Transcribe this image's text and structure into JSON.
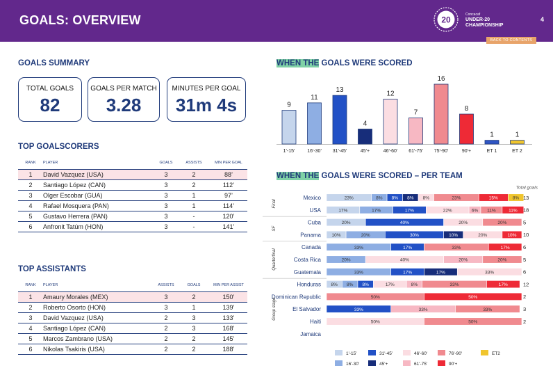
{
  "header": {
    "title": "GOALS: OVERVIEW",
    "page_number": "4",
    "back_label": "BACK TO CONTENTS",
    "logo": {
      "badge": "20",
      "line1": "Concacaf",
      "line2": "UNDER-20",
      "line3": "CHAMPIONSHIP"
    }
  },
  "summary": {
    "title": "GOALS SUMMARY",
    "stats": [
      {
        "label": "TOTAL GOALS",
        "value": "82"
      },
      {
        "label": "GOALS PER MATCH",
        "value": "3.28"
      },
      {
        "label": "MINUTES PER GOAL",
        "value": "31m 4s"
      }
    ]
  },
  "scorers": {
    "title": "TOP GOALSCORERS",
    "headers": [
      "RANK",
      "PLAYER",
      "GOALS",
      "ASSISTS",
      "MIN PER GOAL"
    ],
    "rows": [
      [
        "1",
        "David Vazquez (USA)",
        "3",
        "2",
        "88’"
      ],
      [
        "2",
        "Santiago López (CAN)",
        "3",
        "2",
        "112’"
      ],
      [
        "3",
        "Olger Escobar (GUA)",
        "3",
        "1",
        "97’"
      ],
      [
        "4",
        "Rafael Mosquera (PAN)",
        "3",
        "1",
        "114’"
      ],
      [
        "5",
        "Gustavo Herrera (PAN)",
        "3",
        "-",
        "120’"
      ],
      [
        "6",
        "Anfronit Tatúm (HON)",
        "3",
        "-",
        "141’"
      ]
    ]
  },
  "assists": {
    "title": "TOP ASSISTANTS",
    "headers": [
      "RANK",
      "PLAYER",
      "ASSISTS",
      "GOALS",
      "MIN PER ASSIST"
    ],
    "rows": [
      [
        "1",
        "Amaury Morales (MEX)",
        "3",
        "2",
        "150’"
      ],
      [
        "2",
        "Roberto Osorto (HON)",
        "3",
        "1",
        "139’"
      ],
      [
        "3",
        "David Vazquez (USA)",
        "2",
        "3",
        "133’"
      ],
      [
        "4",
        "Santiago López (CAN)",
        "2",
        "3",
        "168’"
      ],
      [
        "5",
        "Marcos Zambrano (USA)",
        "2",
        "2",
        "145’"
      ],
      [
        "6",
        "Nikolas Tsakiris (USA)",
        "2",
        "2",
        "188’"
      ]
    ]
  },
  "when_title": {
    "highlight": "WHEN THE",
    "rest": " GOALS WERE SCORED"
  },
  "per_team_title": {
    "highlight": "WHEN THE",
    "rest": " GOALS WERE SCORED – PER TEAM"
  },
  "colors": {
    "1'-15'": "#c5d5ec",
    "16'-30'": "#8eaee3",
    "31'-45'": "#2251c6",
    "45'+": "#172d7a",
    "46'-60'": "#fbdde2",
    "61'-75'": "#f7b8c3",
    "76'-90'": "#f08a8f",
    "90'+": "#ee2a36",
    "ET1": "#2f55c4",
    "ET2": "#f0c52e"
  },
  "chart_data": [
    {
      "type": "bar",
      "title": "WHEN THE GOALS WERE SCORED",
      "categories": [
        "1'-15'",
        "16'-30'",
        "31'-45'",
        "45'+",
        "46'-60'",
        "61'-75'",
        "75'-90'",
        "90'+",
        "ET 1",
        "ET 2"
      ],
      "values": [
        9,
        11,
        13,
        4,
        12,
        7,
        16,
        8,
        1,
        1
      ],
      "ylim": [
        0,
        16
      ]
    },
    {
      "type": "bar",
      "stacked": true,
      "orientation": "horizontal",
      "title": "WHEN THE GOALS WERE SCORED – PER TEAM",
      "total_label": "Total goals",
      "groups": [
        {
          "name": "Final",
          "teams": [
            "Mexico",
            "USA"
          ]
        },
        {
          "name": "SF",
          "teams": [
            "Cuba",
            "Panama"
          ]
        },
        {
          "name": "Quarterfinal",
          "teams": [
            "Canada",
            "Costa Rica",
            "Guatemala"
          ]
        },
        {
          "name": "Group stage",
          "teams": [
            "Honduras",
            "Dominican Republic",
            "El Salvador",
            "Haiti",
            "Jamaica"
          ]
        }
      ],
      "teams": [
        {
          "name": "Mexico",
          "total": "13",
          "segments": [
            [
              "1'-15'",
              23
            ],
            [
              "16'-30'",
              8
            ],
            [
              "31'-45'",
              8
            ],
            [
              "45'+",
              8
            ],
            [
              "46'-60'",
              8
            ],
            [
              "76'-90'",
              23
            ],
            [
              "90'+",
              15
            ],
            [
              "ET2",
              8
            ]
          ]
        },
        {
          "name": "USA",
          "total": "18",
          "segments": [
            [
              "1'-15'",
              17
            ],
            [
              "16'-30'",
              17
            ],
            [
              "31'-45'",
              17
            ],
            [
              "46'-60'",
              22
            ],
            [
              "61'-75'",
              6
            ],
            [
              "76'-90'",
              11
            ],
            [
              "90'+",
              11
            ]
          ]
        },
        {
          "name": "Cuba",
          "total": "5",
          "segments": [
            [
              "1'-15'",
              20
            ],
            [
              "31'-45'",
              40
            ],
            [
              "46'-60'",
              20
            ],
            [
              "76'-90'",
              20
            ]
          ]
        },
        {
          "name": "Panama",
          "total": "10",
          "segments": [
            [
              "1'-15'",
              10
            ],
            [
              "16'-30'",
              20
            ],
            [
              "31'-45'",
              30
            ],
            [
              "45'+",
              10
            ],
            [
              "46'-60'",
              20
            ],
            [
              "90'+",
              10
            ]
          ]
        },
        {
          "name": "Canada",
          "total": "6",
          "segments": [
            [
              "16'-30'",
              33
            ],
            [
              "31'-45'",
              17
            ],
            [
              "76'-90'",
              33
            ],
            [
              "90'+",
              17
            ]
          ]
        },
        {
          "name": "Costa Rica",
          "total": "5",
          "segments": [
            [
              "16'-30'",
              20
            ],
            [
              "46'-60'",
              40
            ],
            [
              "61'-75'",
              20
            ],
            [
              "76'-90'",
              20
            ]
          ]
        },
        {
          "name": "Guatemala",
          "total": "6",
          "segments": [
            [
              "16'-30'",
              33
            ],
            [
              "31'-45'",
              17
            ],
            [
              "45'+",
              17
            ],
            [
              "46'-60'",
              33
            ]
          ]
        },
        {
          "name": "Honduras",
          "total": "12",
          "segments": [
            [
              "1'-15'",
              8
            ],
            [
              "16'-30'",
              8
            ],
            [
              "31'-45'",
              8
            ],
            [
              "46'-60'",
              17
            ],
            [
              "61'-75'",
              8
            ],
            [
              "76'-90'",
              33
            ],
            [
              "90'+",
              17
            ]
          ]
        },
        {
          "name": "Dominican Republic",
          "total": "2",
          "segments": [
            [
              "76'-90'",
              50
            ],
            [
              "90'+",
              50
            ]
          ]
        },
        {
          "name": "El Salvador",
          "total": "3",
          "segments": [
            [
              "31'-45'",
              33
            ],
            [
              "61'-75'",
              33
            ],
            [
              "76'-90'",
              33
            ]
          ]
        },
        {
          "name": "Haiti",
          "total": "2",
          "segments": [
            [
              "46'-60'",
              50
            ],
            [
              "76'-90'",
              50
            ]
          ]
        },
        {
          "name": "Jamaica",
          "total": "",
          "segments": []
        }
      ],
      "legend": [
        {
          "label": "1'-15'",
          "key": "1'-15'"
        },
        {
          "label": "31'-45'",
          "key": "31'-45'"
        },
        {
          "label": "46'-60'",
          "key": "46'-60'"
        },
        {
          "label": "76'-90'",
          "key": "76'-90'"
        },
        {
          "label": "ET2",
          "key": "ET2"
        },
        {
          "label": "16'-30'",
          "key": "16'-30'"
        },
        {
          "label": "45'+",
          "key": "45'+"
        },
        {
          "label": "61'-75'",
          "key": "61'-75'"
        },
        {
          "label": "90'+",
          "key": "90'+"
        }
      ]
    }
  ]
}
